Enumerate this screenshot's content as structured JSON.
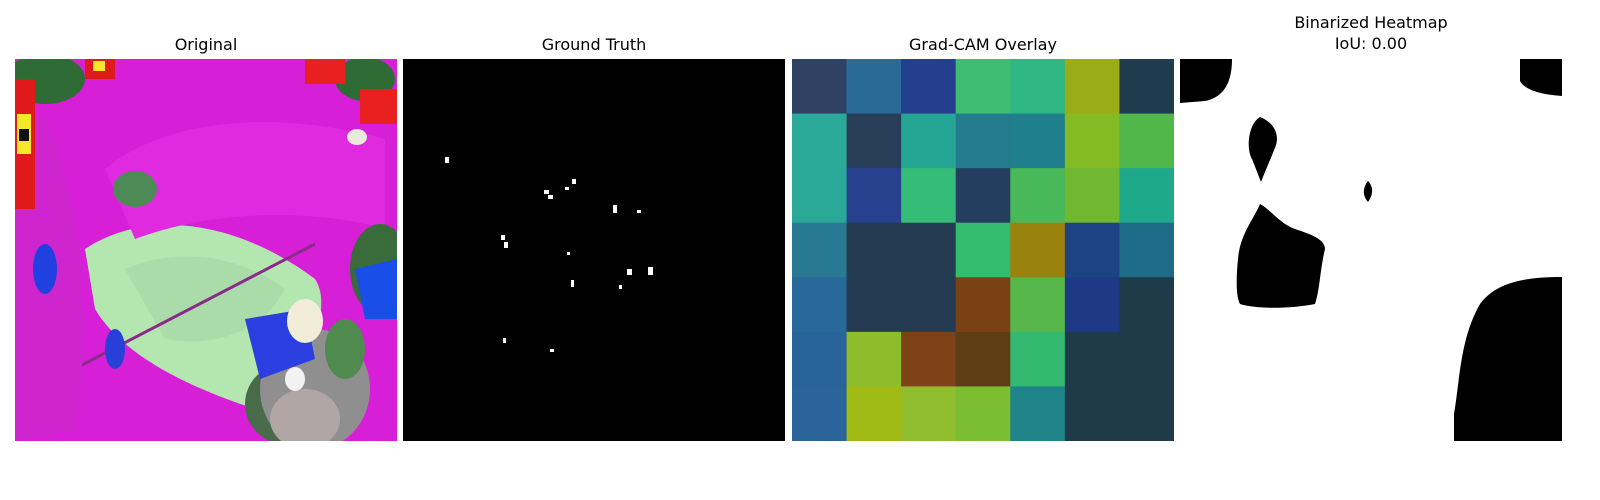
{
  "panels": [
    {
      "title": "Original"
    },
    {
      "title": "Ground Truth"
    },
    {
      "title": "Grad-CAM Overlay"
    },
    {
      "title": "Binarized Heatmap",
      "subtitle": "IoU: 0.00"
    }
  ],
  "gradcam": {
    "grid_size": 7,
    "cells": [
      [
        "#2f4263",
        "#2a6a97",
        "#253f8f",
        "#3fbd73",
        "#2fb881",
        "#9aad16",
        "#1f3b4e"
      ],
      [
        "#2aa898",
        "#293e58",
        "#25a594",
        "#237b8d",
        "#1f7f8c",
        "#84bb24",
        "#52b74a"
      ],
      [
        "#2aa898",
        "#27418f",
        "#35bd77",
        "#233e5f",
        "#49b858",
        "#6fb830",
        "#1fa889"
      ],
      [
        "#287a93",
        "#243b52",
        "#243b52",
        "#35bd6f",
        "#9a820f",
        "#1e4385",
        "#1f6c88"
      ],
      [
        "#28699a",
        "#243b52",
        "#243b52",
        "#7a4214",
        "#57b74a",
        "#1e3a86",
        "#1f3a48"
      ],
      [
        "#28649a",
        "#8ebd2b",
        "#7e4118",
        "#5e3c14",
        "#33ba70",
        "#1f3a48",
        "#1f3a48"
      ],
      [
        "#2a649a",
        "#9fba14",
        "#90bd2d",
        "#7bbd31",
        "#1f848a",
        "#1f3a48",
        "#1f3a48"
      ]
    ]
  }
}
